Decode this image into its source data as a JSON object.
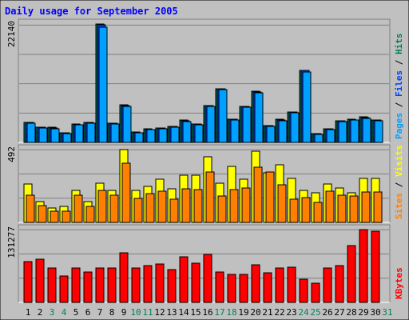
{
  "title": "Daily usage for September 2005",
  "colors": {
    "background": "#c0c0c0",
    "title": "#0000ff",
    "pages": "#00a0ff",
    "files": "#0040ff",
    "hits": "#00805f",
    "visits": "#ffff00",
    "sites": "#ff8000",
    "kbytes": "#ff0000",
    "weekend_day": "#00805f",
    "weekday": "#000000"
  },
  "chart_data": [
    {
      "type": "bar",
      "name": "hits-files-pages",
      "max_label": "22140",
      "ylim": [
        0,
        22140
      ],
      "legend": [
        "Pages",
        "Files",
        "Hits"
      ],
      "categories": [
        "1",
        "2",
        "3",
        "4",
        "5",
        "6",
        "7",
        "8",
        "9",
        "10",
        "11",
        "12",
        "13",
        "14",
        "15",
        "16",
        "17",
        "18",
        "19",
        "20",
        "21",
        "22",
        "23",
        "24",
        "25",
        "26",
        "27",
        "28",
        "29",
        "30",
        "31"
      ],
      "series": [
        {
          "name": "Hits",
          "values": [
            3750,
            2850,
            2800,
            1800,
            3400,
            3800,
            22100,
            3600,
            7000,
            1900,
            2500,
            2750,
            3050,
            4150,
            3500,
            6950,
            10000,
            4350,
            6750,
            9500,
            3150,
            4300,
            5750,
            13500,
            1650,
            2600,
            4050,
            4300,
            4750,
            4250,
            0
          ]
        },
        {
          "name": "Files",
          "values": [
            3700,
            2800,
            2750,
            1750,
            3350,
            3750,
            22000,
            3550,
            6950,
            1850,
            2450,
            2700,
            3000,
            4100,
            3450,
            6900,
            9950,
            4300,
            6700,
            9450,
            3100,
            4250,
            5700,
            13400,
            1600,
            2550,
            4000,
            4250,
            4700,
            4200,
            0
          ]
        },
        {
          "name": "Pages",
          "values": [
            3550,
            2700,
            2600,
            1600,
            3250,
            3650,
            21500,
            3400,
            6800,
            1800,
            2400,
            2600,
            2850,
            3950,
            3300,
            6800,
            9850,
            4150,
            6550,
            9300,
            2950,
            4100,
            5600,
            13200,
            1500,
            2450,
            3850,
            4150,
            4500,
            4050,
            0
          ]
        }
      ]
    },
    {
      "type": "bar",
      "name": "visits-sites",
      "max_label": "492",
      "ylim": [
        0,
        492
      ],
      "legend": [
        "Sites",
        "Visits"
      ],
      "categories": [
        "1",
        "2",
        "3",
        "4",
        "5",
        "6",
        "7",
        "8",
        "9",
        "10",
        "11",
        "12",
        "13",
        "14",
        "15",
        "16",
        "17",
        "18",
        "19",
        "20",
        "21",
        "22",
        "23",
        "24",
        "25",
        "26",
        "27",
        "28",
        "29",
        "30",
        "31"
      ],
      "series": [
        {
          "name": "Visits",
          "values": [
            258,
            143,
            96,
            106,
            218,
            138,
            263,
            215,
            492,
            215,
            242,
            290,
            227,
            318,
            318,
            442,
            263,
            381,
            293,
            482,
            335,
            387,
            295,
            218,
            199,
            258,
            232,
            199,
            298,
            298,
            0
          ]
        },
        {
          "name": "Sites",
          "values": [
            186,
            116,
            77,
            77,
            182,
            106,
            218,
            182,
            402,
            160,
            192,
            209,
            155,
            227,
            221,
            340,
            177,
            224,
            232,
            371,
            340,
            255,
            157,
            170,
            135,
            209,
            182,
            180,
            205,
            208,
            0
          ]
        }
      ]
    },
    {
      "type": "bar",
      "name": "kbytes",
      "max_label": "131277",
      "ylim": [
        0,
        131277
      ],
      "legend": [
        "KBytes"
      ],
      "categories": [
        "1",
        "2",
        "3",
        "4",
        "5",
        "6",
        "7",
        "8",
        "9",
        "10",
        "11",
        "12",
        "13",
        "14",
        "15",
        "16",
        "17",
        "18",
        "19",
        "20",
        "21",
        "22",
        "23",
        "24",
        "25",
        "26",
        "27",
        "28",
        "29",
        "30",
        "31"
      ],
      "series": [
        {
          "name": "KBytes",
          "values": [
            73000,
            78000,
            62000,
            48000,
            62000,
            55000,
            62000,
            62000,
            90000,
            62000,
            67000,
            69000,
            59000,
            82000,
            71000,
            86000,
            55000,
            50000,
            51000,
            68000,
            53000,
            62000,
            63000,
            42000,
            35000,
            62000,
            67000,
            102000,
            131277,
            128000,
            0
          ]
        }
      ]
    }
  ],
  "weekend_days": [
    3,
    4,
    10,
    11,
    17,
    18,
    24,
    25,
    31
  ]
}
